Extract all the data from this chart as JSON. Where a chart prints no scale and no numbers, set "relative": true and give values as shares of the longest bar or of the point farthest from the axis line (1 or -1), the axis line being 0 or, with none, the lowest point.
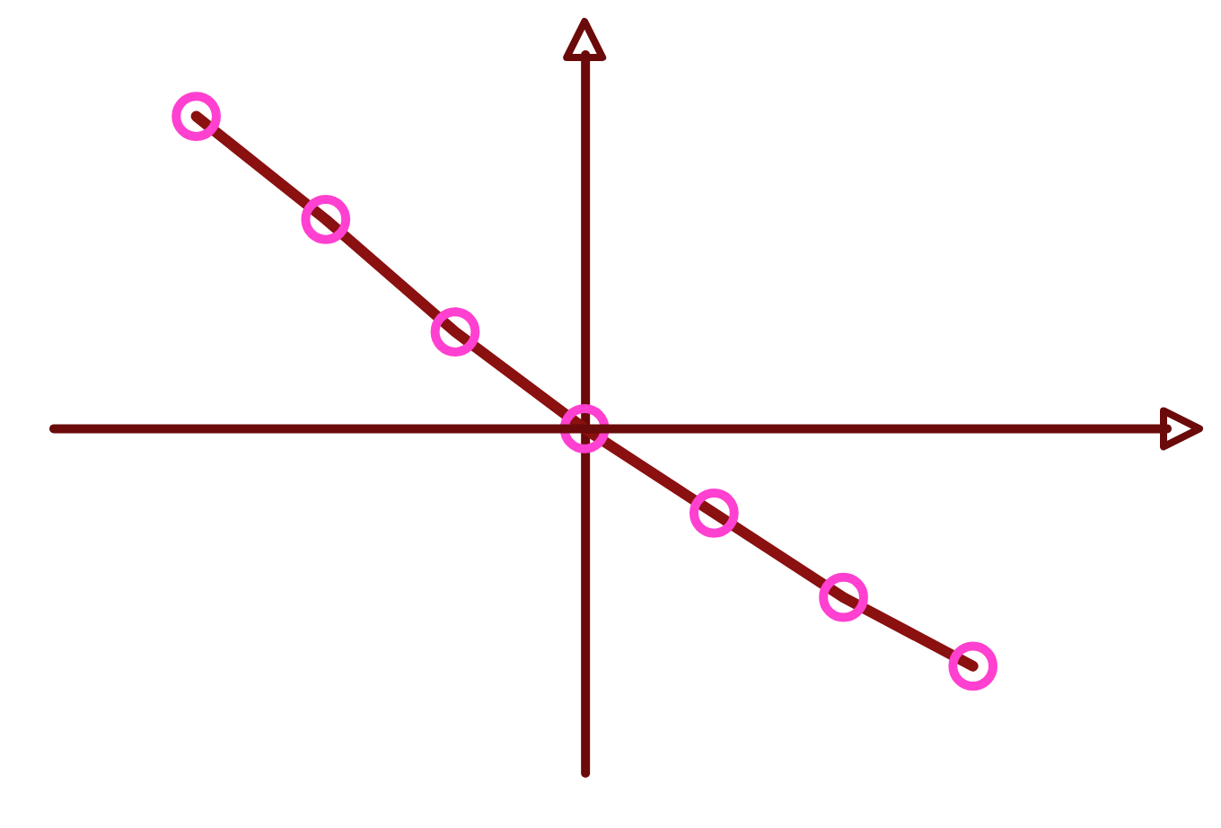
{
  "chart_data": {
    "type": "line",
    "relative": true,
    "marker": "circle",
    "categories": [
      null,
      null,
      null,
      null,
      null,
      null,
      null
    ],
    "ref_lines": [
      {
        "axis": "y",
        "value": 0,
        "color": "#6b0a0a"
      }
    ],
    "series": [
      {
        "color": "#8b1010",
        "colors": [
          "#ff40d0",
          "#ff40d0",
          "#ff40d0",
          "#ff40d0",
          "#ff40d0",
          "#ff40d0",
          "#ff40d0"
        ],
        "values": [
          1,
          0.67,
          0.31,
          0,
          -0.27,
          -0.54,
          -0.76
        ]
      }
    ]
  }
}
